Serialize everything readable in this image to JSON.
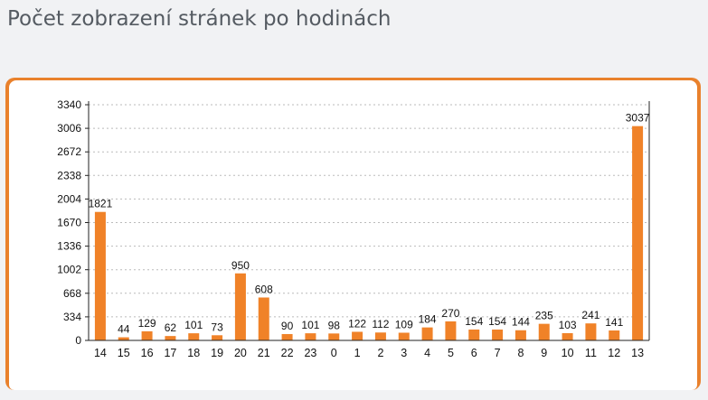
{
  "header": {
    "title": "Počet zobrazení stránek po hodinách"
  },
  "colors": {
    "bar": "#f08228",
    "card_border": "#e9812c",
    "grid": "#bbbbbb"
  },
  "chart_data": {
    "type": "bar",
    "title": "Počet zobrazení stránek po hodinách",
    "xlabel": "",
    "ylabel": "",
    "categories": [
      "14",
      "15",
      "16",
      "17",
      "18",
      "19",
      "20",
      "21",
      "22",
      "23",
      "0",
      "1",
      "2",
      "3",
      "4",
      "5",
      "6",
      "7",
      "8",
      "9",
      "10",
      "11",
      "12",
      "13"
    ],
    "values": [
      1821,
      44,
      129,
      62,
      101,
      73,
      950,
      608,
      90,
      101,
      98,
      122,
      112,
      109,
      184,
      270,
      154,
      154,
      144,
      235,
      103,
      241,
      141,
      3037
    ],
    "value_labels": [
      "1821",
      "44",
      "129",
      "62",
      "101",
      "73",
      "950",
      "608",
      "90",
      "101",
      "98",
      "122",
      "112",
      "109",
      "184",
      "270",
      "154",
      "154",
      "144",
      "235",
      "103",
      "241",
      "141",
      "3037"
    ],
    "yticks": [
      "0",
      "334",
      "668",
      "1002",
      "1336",
      "1670",
      "2004",
      "2338",
      "2672",
      "3006",
      "3340"
    ],
    "ylim": [
      0,
      3340
    ],
    "grid": true,
    "legend": "none"
  }
}
